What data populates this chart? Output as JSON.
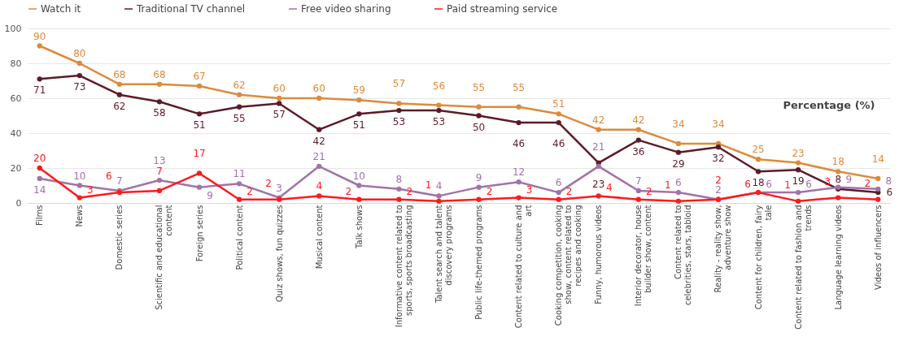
{
  "chart_data": {
    "type": "line",
    "categories": [
      "Films",
      "News",
      "Domestic series",
      "Scientific and educational content",
      "Foreign series",
      "Political content",
      "Quiz shows, fun quizzes",
      "Musical content",
      "Talk shows",
      "Informative content related to sports, sports broadcasting",
      "Talent search and talent discovery programs",
      "Public life-themed programs",
      "Content related to culture and art",
      "Cooking competition, cooking show, content related to recipes and cooking",
      "Funny, humorous videos",
      "Interior decorator, house builder show, content",
      "Content related to celebrities, stars, tabloid",
      "Reality - reality show, adventure show",
      "Content for children, fairy tale",
      "Content related to fashion and trends",
      "Language learning videos",
      "Videos of influencers"
    ],
    "series": [
      {
        "name": "Watch it",
        "color": "#dd8a3e",
        "values": [
          90,
          80,
          68,
          68,
          67,
          62,
          60,
          60,
          59,
          57,
          56,
          55,
          55,
          51,
          42,
          42,
          34,
          34,
          25,
          23,
          18,
          14
        ]
      },
      {
        "name": "Traditional TV channel",
        "color": "#5c1a28",
        "values": [
          71,
          73,
          62,
          58,
          51,
          55,
          57,
          42,
          51,
          53,
          53,
          50,
          46,
          46,
          23,
          36,
          29,
          32,
          18,
          19,
          8,
          6
        ]
      },
      {
        "name": "Free video sharing",
        "color": "#a272a8",
        "values": [
          14,
          10,
          7,
          13,
          9,
          11,
          3,
          21,
          10,
          8,
          4,
          9,
          12,
          6,
          21,
          7,
          6,
          2,
          6,
          6,
          9,
          8
        ]
      },
      {
        "name": "Paid streaming service",
        "color": "#ff1a1a",
        "values": [
          20,
          3,
          6,
          7,
          17,
          2,
          2,
          4,
          2,
          2,
          1,
          2,
          3,
          2,
          4,
          2,
          1,
          2,
          6,
          1,
          3,
          2
        ]
      }
    ],
    "ylim": [
      0,
      100
    ],
    "yticks": [
      0,
      20,
      40,
      60,
      80,
      100
    ],
    "grid": "y",
    "legend": "top",
    "marker": "circle",
    "data_labels": true,
    "annotations": [
      "Percentage (%)"
    ]
  }
}
